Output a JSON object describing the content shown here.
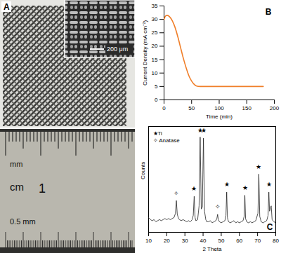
{
  "panel_a": {
    "label": "A",
    "inset_scale_bar": "200 μm",
    "ruler_texts": [
      "mm",
      "cm",
      "1",
      "0.5 mm"
    ]
  },
  "chart_data": [
    {
      "type": "line",
      "panel_label": "B",
      "xlabel": "Time (min)",
      "ylabel": "Current Density (mA cm⁻²)",
      "x": [
        0,
        3,
        6,
        10,
        15,
        20,
        25,
        30,
        35,
        40,
        45,
        50,
        55,
        60,
        65,
        70,
        80,
        100,
        120,
        140,
        160,
        180
      ],
      "values": [
        30,
        31.3,
        31.5,
        31,
        29.5,
        27,
        23.5,
        19.5,
        15.5,
        12,
        9,
        7,
        5.7,
        5.1,
        5,
        5,
        5,
        5,
        5,
        5,
        5,
        5
      ],
      "color": "#f07f2a",
      "xlim": [
        0,
        200
      ],
      "xticks": [
        0,
        50,
        100,
        150,
        200
      ],
      "ylim": [
        0,
        35
      ],
      "yticks": [
        0,
        5,
        10,
        15,
        20,
        25,
        30,
        35
      ],
      "grid": false
    },
    {
      "type": "line",
      "panel_label": "C",
      "xlabel": "2 Theta",
      "ylabel": "Counts",
      "x": [
        10,
        11,
        12,
        13,
        14,
        15,
        16,
        17,
        18,
        19,
        20,
        21,
        22,
        23,
        24,
        24.8,
        25.3,
        25.8,
        26.5,
        27,
        28,
        29,
        30,
        31,
        32,
        33,
        34,
        34.6,
        35.1,
        35.6,
        36,
        37,
        37.8,
        38.4,
        39,
        39.6,
        40.2,
        40.8,
        41.5,
        42,
        43,
        44,
        45,
        46,
        47,
        47.6,
        48,
        48.4,
        49,
        50,
        51,
        52,
        52.6,
        53,
        53.4,
        54,
        55,
        56,
        57,
        58,
        59,
        60,
        61,
        62,
        62.6,
        63,
        63.4,
        64,
        65,
        66,
        67,
        68,
        69,
        70.2,
        70.7,
        71.2,
        72,
        73,
        74,
        75,
        75.8,
        76.2,
        76.6,
        77,
        77.5,
        78,
        79,
        80
      ],
      "values": [
        14,
        12,
        11,
        12,
        10,
        11,
        12,
        11,
        12,
        13,
        12,
        13,
        12,
        13,
        14,
        18,
        30,
        17,
        13,
        12,
        11,
        12,
        11,
        10,
        11,
        10,
        12,
        16,
        34,
        14,
        11,
        12,
        25,
        90,
        22,
        24,
        89,
        20,
        12,
        10,
        10,
        11,
        9,
        10,
        11,
        13,
        17,
        12,
        10,
        9,
        10,
        11,
        16,
        38,
        14,
        10,
        9,
        10,
        11,
        9,
        10,
        9,
        10,
        11,
        15,
        35,
        13,
        10,
        9,
        10,
        9,
        10,
        11,
        18,
        55,
        15,
        10,
        9,
        10,
        11,
        16,
        38,
        20,
        22,
        25,
        12,
        10,
        9
      ],
      "color": "#222222",
      "xlim": [
        10,
        80
      ],
      "xticks": [
        10,
        20,
        30,
        40,
        50,
        60,
        70,
        80
      ],
      "ylim": [
        0,
        100
      ],
      "tick_labels": "x",
      "legend": "top-left",
      "marker_legend": [
        "★Ti",
        "✧ Anatase"
      ],
      "markers": [
        {
          "x": 25.3,
          "y": 37,
          "symbol": "✧"
        },
        {
          "x": 35.1,
          "y": 41,
          "symbol": "★"
        },
        {
          "x": 38.4,
          "y": 96,
          "symbol": "★"
        },
        {
          "x": 40.2,
          "y": 96,
          "symbol": "★"
        },
        {
          "x": 48,
          "y": 24,
          "symbol": "✧"
        },
        {
          "x": 53,
          "y": 45,
          "symbol": "★"
        },
        {
          "x": 63,
          "y": 42,
          "symbol": "★"
        },
        {
          "x": 70.7,
          "y": 62,
          "symbol": "★"
        },
        {
          "x": 76.2,
          "y": 45,
          "symbol": "★"
        }
      ],
      "grid": false
    }
  ]
}
